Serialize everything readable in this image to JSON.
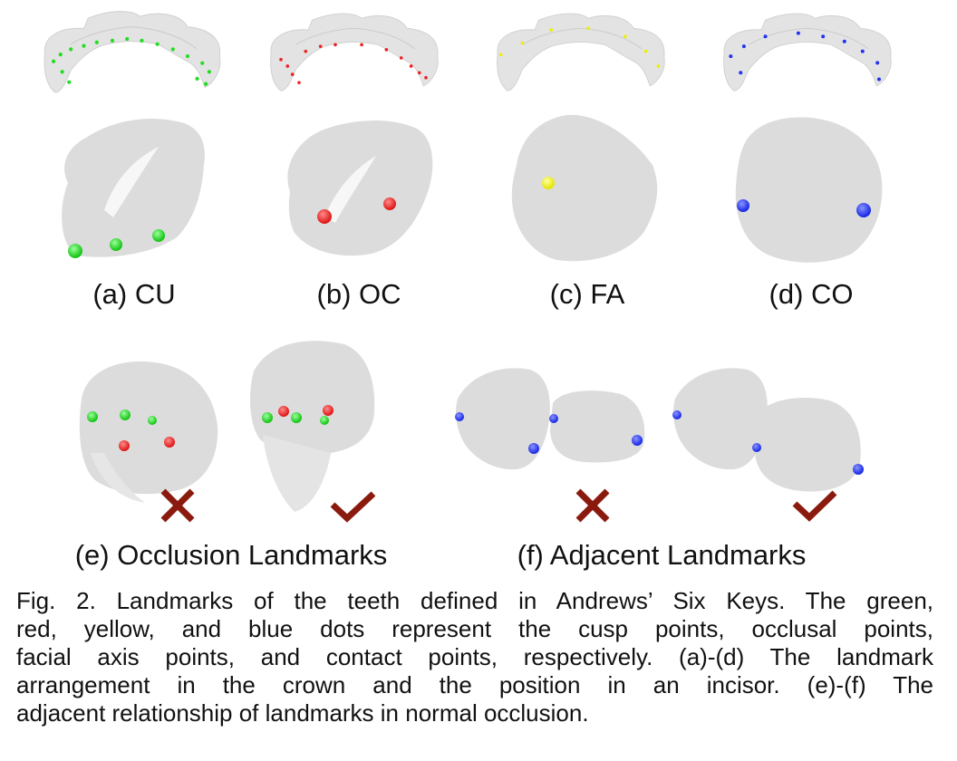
{
  "figure": {
    "subfigures": [
      {
        "label": "(a) CU",
        "landmark_type": "cusp points",
        "color": "#22dd22"
      },
      {
        "label": "(b) OC",
        "landmark_type": "occlusal points",
        "color": "#ee2222"
      },
      {
        "label": "(c) FA",
        "landmark_type": "facial axis points",
        "color": "#eeee00"
      },
      {
        "label": "(d) CO",
        "landmark_type": "contact points",
        "color": "#2233ee"
      }
    ],
    "relation_panels": [
      {
        "label": "(e) Occlusion Landmarks",
        "wrong_mark": "cross",
        "right_mark": "check"
      },
      {
        "label": "(f) Adjacent Landmarks",
        "wrong_mark": "cross",
        "right_mark": "check"
      }
    ],
    "mark_color": "#8b1a0e",
    "caption_lines": [
      "Fig. 2. Landmarks of the teeth defined in Andrews’ Six Keys. The green,",
      "red, yellow, and blue dots represent the cusp points, occlusal points,",
      "facial axis points, and contact points, respectively. (a)-(d) The landmark",
      "arrangement in the crown and the position in an incisor. (e)-(f) The",
      "adjacent relationship of landmarks in normal occlusion."
    ]
  }
}
